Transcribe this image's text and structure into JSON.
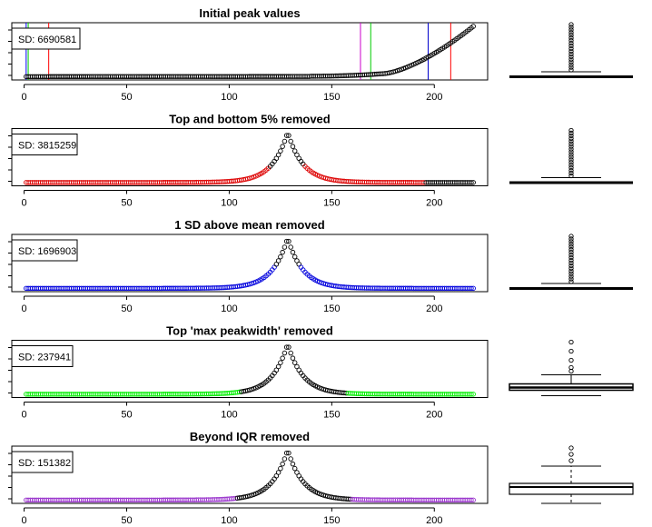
{
  "chart_data": [
    {
      "type": "scatter",
      "title": "Initial peak values",
      "annotation": "SD: 6690581",
      "xlim": [
        0,
        220
      ],
      "xticks": [
        "0",
        "50",
        "100",
        "150",
        "200"
      ],
      "boxplot": "whiskers near baseline with many high outliers",
      "vlines": [
        {
          "x": 1,
          "color": "#0000ff"
        },
        {
          "x": 2,
          "color": "#00cc00"
        },
        {
          "x": 12,
          "color": "#ff0000"
        },
        {
          "x": 164,
          "color": "#cc00cc"
        },
        {
          "x": 169,
          "color": "#00cc00"
        },
        {
          "x": 197,
          "color": "#0000cc"
        },
        {
          "x": 208,
          "color": "#ff0000"
        }
      ],
      "curve": "sorted ascending, flat near zero then rising steeply after x≈170",
      "highlight": null
    },
    {
      "type": "scatter",
      "title": "Top and bottom 5% removed",
      "annotation": "SD: 3815259",
      "xlim": [
        0,
        220
      ],
      "xticks": [
        "0",
        "50",
        "100",
        "150",
        "200"
      ],
      "boxplot": "flat box near baseline with many high outliers",
      "curve": "peak centred near x≈128",
      "highlight": {
        "color": "#dd0000",
        "ranges": [
          [
            0,
            119
          ],
          [
            137,
            195
          ]
        ]
      }
    },
    {
      "type": "scatter",
      "title": "1 SD above mean removed",
      "annotation": "SD: 1696903",
      "xlim": [
        0,
        220
      ],
      "xticks": [
        "0",
        "50",
        "100",
        "150",
        "200"
      ],
      "boxplot": "flat box near baseline with many high outliers",
      "curve": "peak centred near x≈128",
      "highlight": {
        "color": "#0000dd",
        "ranges": [
          [
            0,
            122
          ],
          [
            135,
            220
          ]
        ]
      }
    },
    {
      "type": "scatter",
      "title": "Top 'max peakwidth' removed",
      "annotation": "SD: 237941",
      "xlim": [
        0,
        220
      ],
      "xticks": [
        "0",
        "50",
        "100",
        "150",
        "200"
      ],
      "boxplot": "narrow box with upper whisker and several outliers",
      "curve": "peak centred near x≈128",
      "highlight": {
        "color": "#00ee00",
        "ranges": [
          [
            0,
            105
          ],
          [
            158,
            220
          ]
        ]
      }
    },
    {
      "type": "scatter",
      "title": "Beyond IQR removed",
      "annotation": "SD: 151382",
      "xlim": [
        0,
        220
      ],
      "xticks": [
        "0",
        "50",
        "100",
        "150",
        "200"
      ],
      "boxplot": "wider box with dashed whiskers and a few outliers",
      "curve": "peak centred near x≈128",
      "highlight": {
        "color": "#9933cc",
        "ranges": [
          [
            0,
            103
          ],
          [
            160,
            220
          ]
        ]
      }
    }
  ]
}
